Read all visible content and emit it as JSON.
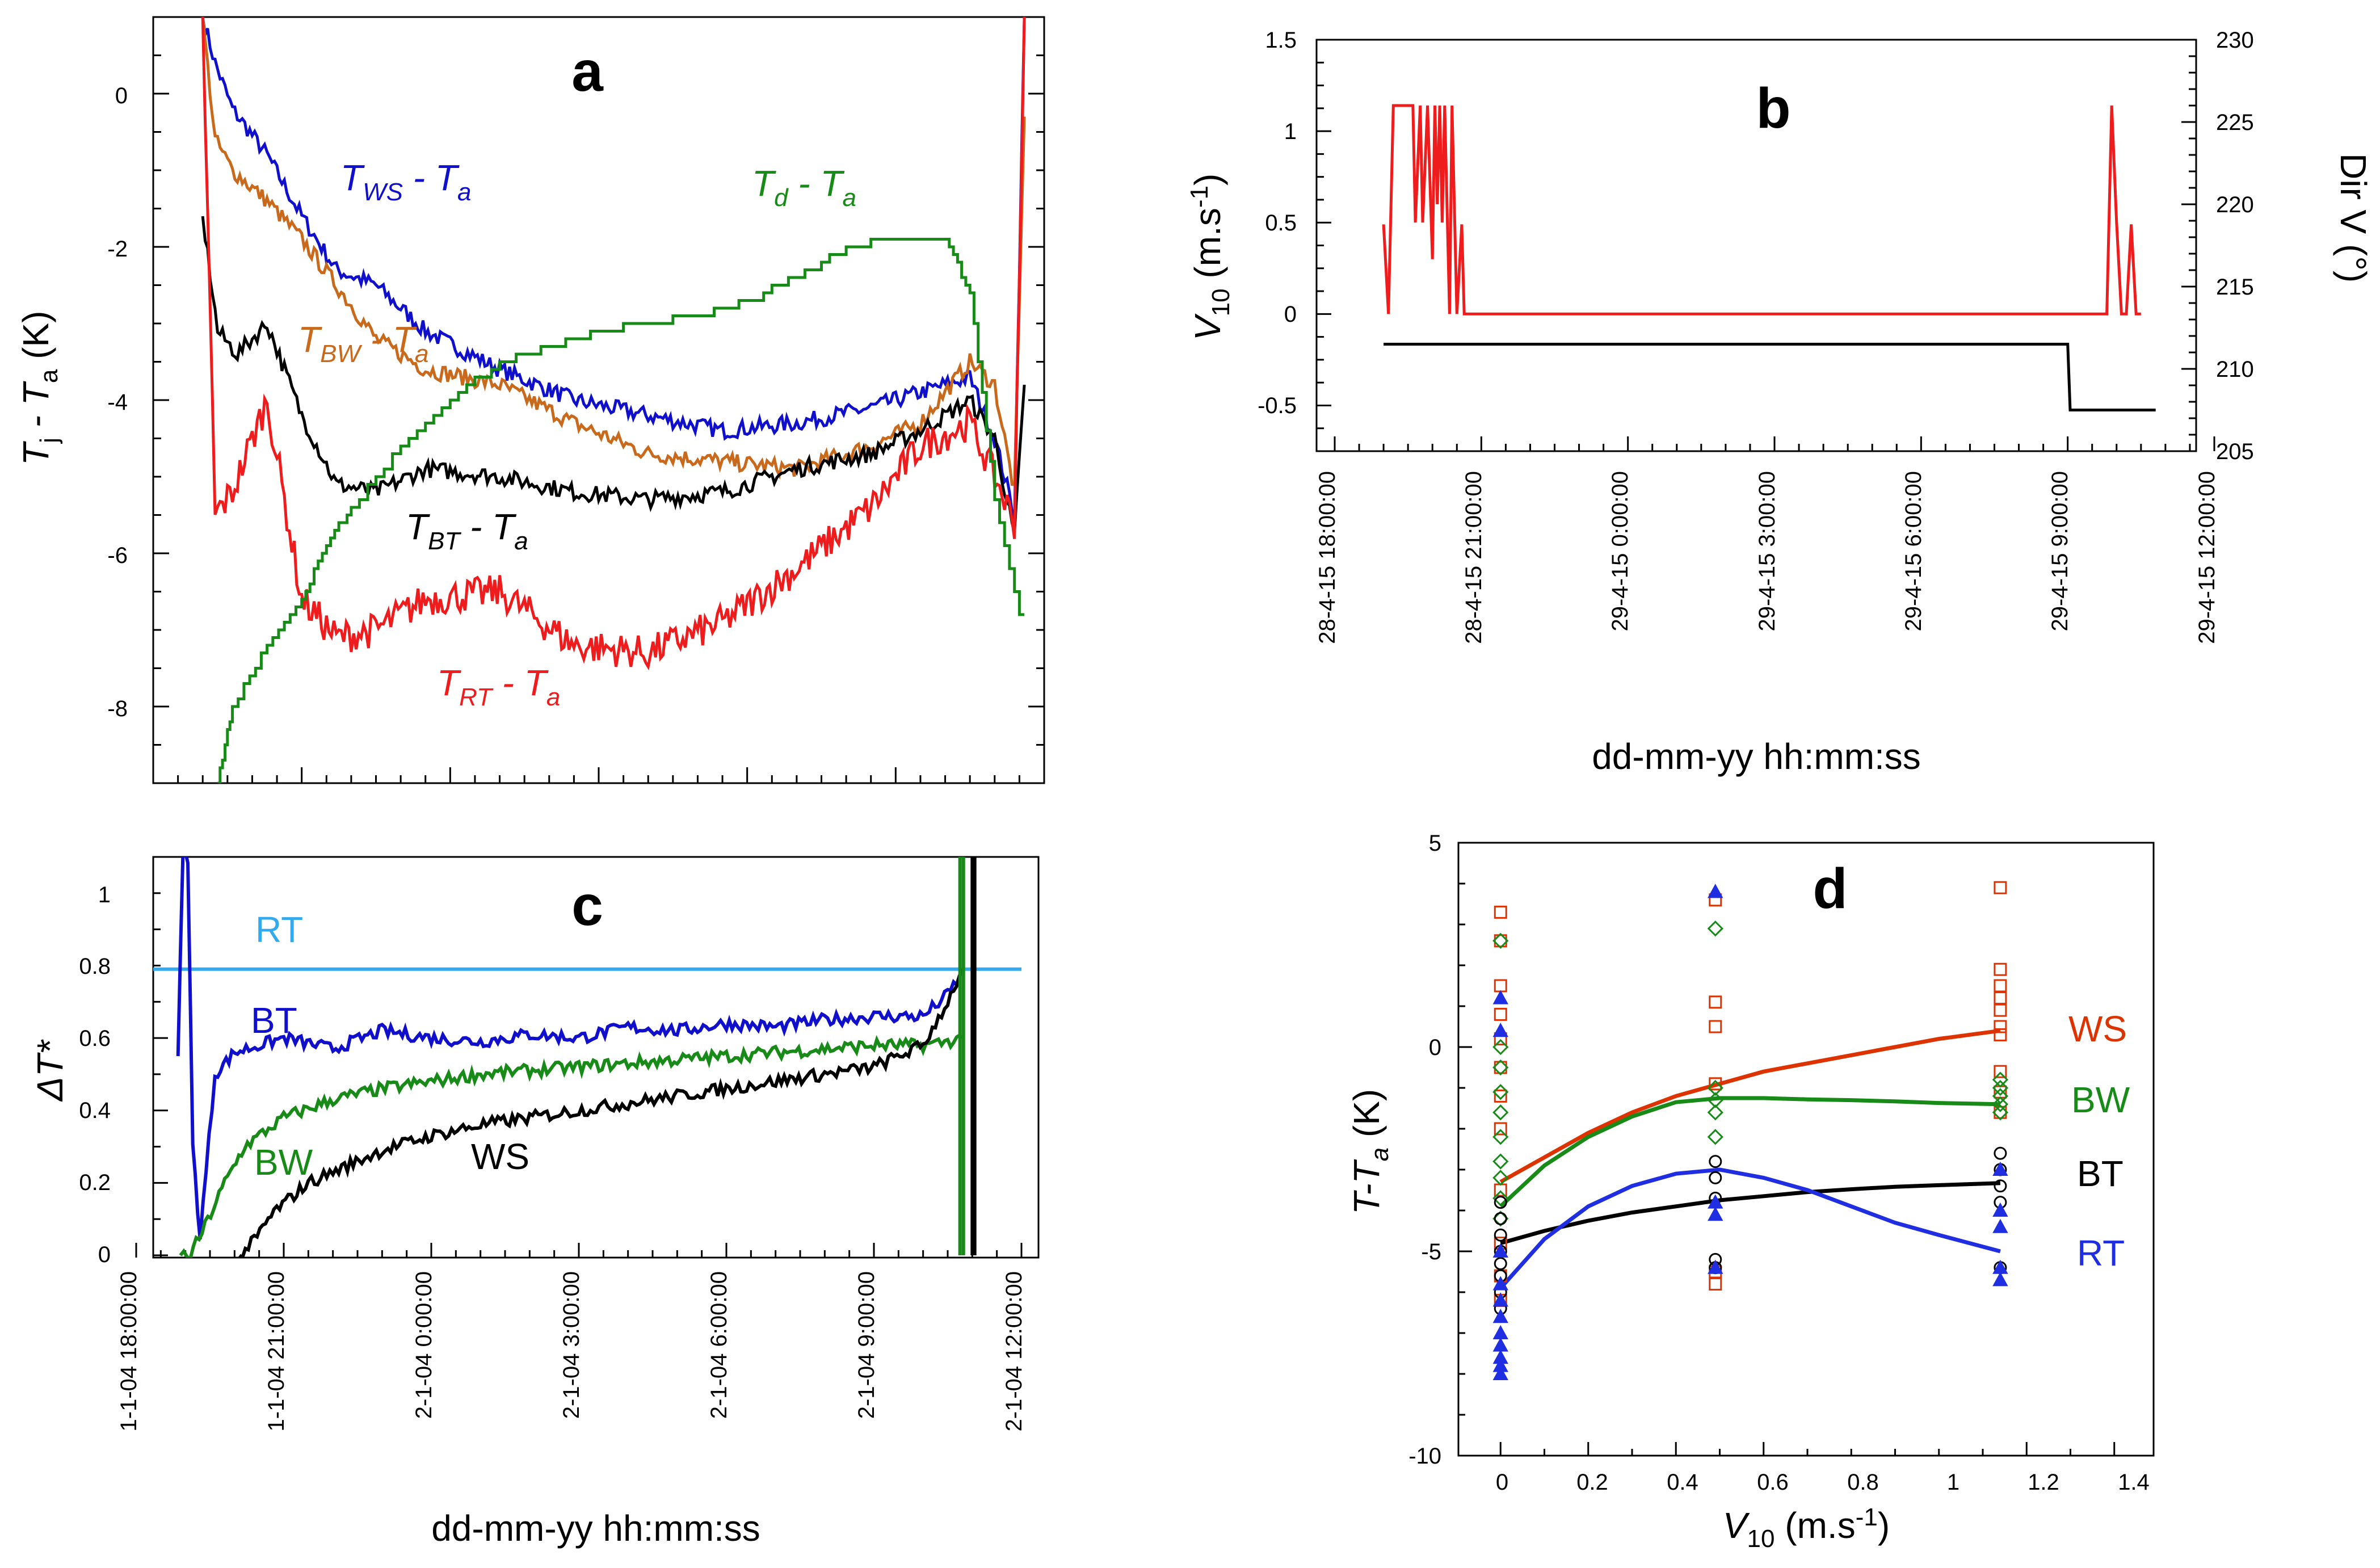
{
  "colors": {
    "ws": "#1010cc",
    "bw": "#c8691c",
    "bt": "#000000",
    "rt": "#ee1c1c",
    "td": "#178a17",
    "rt_c": "#33aaee",
    "red_d": "#dd3300",
    "blue_d": "#1f2ee0",
    "green_d": "#178a17"
  },
  "panel_a": {
    "letter": "a",
    "ylabel_main": "T",
    "ylabel_sub1": "j",
    "ylabel_mid": " - T",
    "ylabel_sub2": "a",
    "ylabel_unit": " (K)",
    "yticks": [
      "0",
      "-2",
      "-4",
      "-6",
      "-8"
    ],
    "labels": {
      "ws": {
        "a": "T",
        "b": "WS",
        "c": " - T",
        "d": "a"
      },
      "td": {
        "a": "T",
        "b": "d",
        "c": " - T",
        "d": "a"
      },
      "bw": {
        "a": "T",
        "b": "BW",
        "c": " - T",
        "d": "a"
      },
      "bt": {
        "a": "T",
        "b": "BT",
        "c": " - T",
        "d": "a"
      },
      "rt": {
        "a": "T",
        "b": "RT",
        "c": " - T",
        "d": "a"
      }
    }
  },
  "panel_b": {
    "letter": "b",
    "ylabel_main": "V",
    "ylabel_sub": "10",
    "ylabel_unit": " (m.s",
    "ylabel_sup": "-1",
    "ylabel_close": ")",
    "y2label": "Dir V (°)",
    "yticks": [
      "1.5",
      "1",
      "0.5",
      "0",
      "-0.5"
    ],
    "y2ticks": [
      "230",
      "225",
      "220",
      "215",
      "210",
      "205"
    ],
    "xticks": [
      "28-4-15 18:00:00",
      "28-4-15 21:00:00",
      "29-4-15 0:00:00",
      "29-4-15 3:00:00",
      "29-4-15 6:00:00",
      "29-4-15 9:00:00",
      "29-4-15 12:00:00"
    ],
    "xlabel": "dd-mm-yy hh:mm:ss"
  },
  "panel_c": {
    "letter": "c",
    "ylabel": "ΔT*",
    "yticks": [
      "1",
      "0.8",
      "0.6",
      "0.4",
      "0.2",
      "0"
    ],
    "xticks": [
      "1-1-04 18:00:00",
      "1-1-04 21:00:00",
      "2-1-04 0:00:00",
      "2-1-04 3:00:00",
      "2-1-04 6:00:00",
      "2-1-04 9:00:00",
      "2-1-04 12:00:00"
    ],
    "xlabel": "dd-mm-yy hh:mm:ss",
    "labels": {
      "rt": "RT",
      "bt": "BT",
      "bw": "BW",
      "ws": "WS"
    }
  },
  "panel_d": {
    "letter": "d",
    "ylabel_main": "T-T",
    "ylabel_sub": "a",
    "ylabel_unit": " (K)",
    "xlabel_main": "V",
    "xlabel_sub": "10",
    "xlabel_unit": " (m.s",
    "xlabel_sup": "-1",
    "xlabel_close": ")",
    "yticks": [
      "5",
      "0",
      "-5",
      "-10"
    ],
    "xticks": [
      "0",
      "0.2",
      "0.4",
      "0.6",
      "0.8",
      "1",
      "1.2",
      "1.4"
    ],
    "legend": {
      "ws": "WS",
      "bw": "BW",
      "bt": "BT",
      "rt": "RT"
    }
  },
  "chart_data": [
    {
      "panel": "a",
      "type": "line",
      "title": "a",
      "xlabel": "",
      "ylabel": "Tj - Ta (K)",
      "x_unit": "hours since 18:00",
      "xlim": [
        0,
        18
      ],
      "ylim": [
        -9,
        1
      ],
      "series": [
        {
          "name": "TWS - Ta",
          "x": [
            1.0,
            1.25,
            1.6,
            2.3,
            3.0,
            3.7,
            4.5,
            5.5,
            7.0,
            8.5,
            10.0,
            11.5,
            13.0,
            14.5,
            15.5,
            16.5,
            17.0,
            17.4,
            17.6
          ],
          "y": [
            1.0,
            0.4,
            -0.2,
            -0.8,
            -1.6,
            -2.3,
            -2.5,
            -3.1,
            -3.6,
            -4.0,
            -4.2,
            -4.4,
            -4.3,
            -4.1,
            -3.9,
            -3.7,
            -4.5,
            -5.5,
            1.0
          ]
        },
        {
          "name": "TBW - Ta",
          "x": [
            1.0,
            1.25,
            1.6,
            2.3,
            3.0,
            3.7,
            4.5,
            5.5,
            7.0,
            8.5,
            10.0,
            11.5,
            13.0,
            14.5,
            15.5,
            16.5,
            17.0,
            17.4,
            17.6
          ],
          "y": [
            1.0,
            -0.6,
            -1.0,
            -1.4,
            -1.9,
            -2.5,
            -3.2,
            -3.6,
            -3.8,
            -4.3,
            -4.7,
            -4.8,
            -4.9,
            -4.6,
            -4.3,
            -3.5,
            -3.8,
            -5.2,
            -0.3
          ]
        },
        {
          "name": "TBT - Ta",
          "x": [
            1.0,
            1.3,
            1.7,
            2.3,
            3.0,
            3.7,
            4.5,
            5.5,
            7.0,
            8.5,
            10.0,
            11.5,
            13.0,
            14.5,
            15.5,
            16.5,
            17.0,
            17.4,
            17.6
          ],
          "y": [
            -1.6,
            -3.1,
            -3.4,
            -3.0,
            -4.2,
            -5.1,
            -5.2,
            -4.9,
            -5.0,
            -5.2,
            -5.3,
            -5.2,
            -4.9,
            -4.7,
            -4.4,
            -4.0,
            -4.5,
            -5.8,
            -3.8
          ]
        },
        {
          "name": "TRT - Ta",
          "x": [
            1.0,
            1.25,
            1.6,
            2.3,
            3.0,
            3.7,
            4.5,
            5.5,
            7.0,
            8.5,
            10.0,
            11.5,
            13.0,
            14.5,
            15.5,
            16.5,
            17.0,
            17.4,
            17.6
          ],
          "y": [
            1.0,
            -5.5,
            -5.2,
            -4.0,
            -6.6,
            -7.1,
            -7.0,
            -6.6,
            -6.5,
            -7.2,
            -7.3,
            -6.9,
            -6.2,
            -5.4,
            -4.6,
            -4.3,
            -5.0,
            -5.6,
            1.0
          ]
        },
        {
          "name": "Td - Ta",
          "x": [
            1.3,
            1.6,
            2.3,
            3.0,
            3.5,
            4.0,
            5.0,
            6.0,
            7.0,
            8.0,
            9.0,
            10.0,
            11.0,
            12.0,
            13.0,
            14.0,
            15.0,
            16.0,
            16.5,
            17.0,
            17.6
          ],
          "y": [
            -9.0,
            -8.0,
            -7.2,
            -6.6,
            -5.9,
            -5.4,
            -4.6,
            -4.0,
            -3.5,
            -3.3,
            -3.1,
            -3.0,
            -2.9,
            -2.7,
            -2.4,
            -2.0,
            -1.9,
            -1.9,
            -2.6,
            -5.3,
            -7.1
          ]
        }
      ]
    },
    {
      "panel": "b",
      "type": "line",
      "title": "b",
      "xlabel": "dd-mm-yy hh:mm:ss",
      "ylabel": "V10 (m.s-1)",
      "y2label": "Dir V (°)",
      "x_unit": "hours since 28-4-15 18:00:00",
      "xlim": [
        0,
        18
      ],
      "ylim": [
        -0.75,
        1.5
      ],
      "y2lim": [
        205,
        230
      ],
      "series": [
        {
          "name": "V10",
          "axis": "left",
          "x": [
            1.0,
            1.1,
            1.2,
            1.6,
            1.65,
            1.75,
            1.8,
            1.9,
            2.0,
            2.05,
            2.1,
            2.15,
            2.2,
            2.25,
            2.35,
            2.4,
            2.5,
            2.6,
            2.65,
            15.8,
            15.9,
            16.0,
            16.1,
            16.2,
            16.3,
            16.4,
            16.5
          ],
          "y": [
            0.49,
            0.0,
            1.14,
            1.14,
            0.5,
            1.14,
            0.5,
            1.14,
            0.3,
            1.14,
            0.6,
            1.14,
            0.5,
            1.14,
            0.0,
            1.14,
            0.0,
            0.49,
            0.0,
            0.0,
            1.14,
            0.5,
            0.0,
            0.0,
            0.49,
            0.0,
            0.0
          ]
        },
        {
          "name": "Dir V",
          "axis": "right",
          "x": [
            1.0,
            15.0,
            15.05,
            16.8
          ],
          "y": [
            211.5,
            211.5,
            207.5,
            207.5
          ]
        }
      ]
    },
    {
      "panel": "c",
      "type": "line",
      "title": "c",
      "xlabel": "dd-mm-yy hh:mm:ss",
      "ylabel": "ΔT*",
      "x_unit": "hours since 1-1-04 18:00:00",
      "xlim": [
        0,
        18
      ],
      "ylim": [
        0,
        1.1
      ],
      "series": [
        {
          "name": "RT",
          "x": [
            0.0,
            18.0
          ],
          "y": [
            0.79,
            0.79
          ]
        },
        {
          "name": "BT",
          "x": [
            0.85,
            0.95,
            1.05,
            1.15,
            1.3,
            1.6,
            2.0,
            3.0,
            4.0,
            5.0,
            6.0,
            7.0,
            8.0,
            9.0,
            10.0,
            11.0,
            12.0,
            13.0,
            14.0,
            15.0,
            16.0,
            16.5,
            16.8
          ],
          "y": [
            0.55,
            1.1,
            1.1,
            0.3,
            0.05,
            0.5,
            0.56,
            0.6,
            0.57,
            0.62,
            0.6,
            0.59,
            0.61,
            0.6,
            0.63,
            0.62,
            0.64,
            0.63,
            0.65,
            0.66,
            0.66,
            0.72,
            0.78
          ]
        },
        {
          "name": "BW",
          "x": [
            0.9,
            1.1,
            1.4,
            1.8,
            2.2,
            3.0,
            4.0,
            5.0,
            6.0,
            7.0,
            8.0,
            9.0,
            10.0,
            11.0,
            12.0,
            13.0,
            14.0,
            15.0,
            16.0,
            16.5,
            16.8
          ],
          "y": [
            0.0,
            0.0,
            0.08,
            0.2,
            0.3,
            0.38,
            0.43,
            0.46,
            0.48,
            0.5,
            0.51,
            0.52,
            0.53,
            0.54,
            0.55,
            0.56,
            0.57,
            0.58,
            0.58,
            0.59,
            0.6
          ]
        },
        {
          "name": "WS",
          "x": [
            2.1,
            2.4,
            2.8,
            3.5,
            4.0,
            5.0,
            6.0,
            7.0,
            8.0,
            9.0,
            10.0,
            11.0,
            12.0,
            13.0,
            14.0,
            15.0,
            16.0,
            16.5,
            16.8
          ],
          "y": [
            0.0,
            0.04,
            0.12,
            0.2,
            0.23,
            0.29,
            0.33,
            0.36,
            0.38,
            0.4,
            0.42,
            0.44,
            0.46,
            0.48,
            0.5,
            0.52,
            0.58,
            0.7,
            0.79
          ]
        }
      ]
    },
    {
      "panel": "d",
      "type": "scatter",
      "title": "d",
      "xlabel": "V10 (m.s-1)",
      "ylabel": "T-Ta (K)",
      "xlim": [
        -0.1,
        1.5
      ],
      "ylim": [
        -10,
        5
      ],
      "series": [
        {
          "name": "WS",
          "marker": "square",
          "x": [
            0,
            0,
            0,
            0,
            0,
            0,
            0,
            0,
            0,
            0,
            0,
            0,
            0.49,
            0.49,
            0.49,
            0.49,
            0.49,
            0.49,
            1.14,
            1.14,
            1.14,
            1.14,
            1.14,
            1.14,
            1.14,
            1.14,
            1.14,
            1.14
          ],
          "y": [
            3.3,
            2.6,
            1.5,
            0.8,
            0.2,
            -0.5,
            -1.2,
            -2.0,
            -3.5,
            -4.8,
            -5.6,
            -6.2,
            3.6,
            1.1,
            0.5,
            -0.9,
            -5.5,
            -5.8,
            3.9,
            1.9,
            1.5,
            1.2,
            0.9,
            0.5,
            0.3,
            -0.6,
            -1.1,
            -1.6
          ]
        },
        {
          "name": "BW",
          "marker": "diamond",
          "x": [
            0,
            0,
            0,
            0,
            0,
            0,
            0,
            0,
            0,
            0,
            0.49,
            0.49,
            0.49,
            0.49,
            0.49,
            1.14,
            1.14,
            1.14,
            1.14,
            1.14
          ],
          "y": [
            2.6,
            0.0,
            -0.5,
            -1.1,
            -1.6,
            -2.2,
            -2.8,
            -3.2,
            -3.7,
            -4.2,
            2.9,
            -1.0,
            -1.3,
            -1.6,
            -2.2,
            -0.8,
            -1.0,
            -1.2,
            -1.4,
            -1.6
          ]
        },
        {
          "name": "BT",
          "marker": "circle",
          "x": [
            0,
            0,
            0,
            0,
            0,
            0,
            0,
            0,
            0.49,
            0.49,
            0.49,
            0.49,
            0.49,
            1.14,
            1.14,
            1.14,
            1.14,
            1.14
          ],
          "y": [
            -3.8,
            -4.2,
            -4.6,
            -5.0,
            -5.3,
            -5.6,
            -6.0,
            -6.4,
            -2.8,
            -3.2,
            -3.7,
            -5.2,
            -5.4,
            -2.6,
            -3.0,
            -3.4,
            -3.8,
            -5.4
          ]
        },
        {
          "name": "RT",
          "marker": "triangle",
          "x": [
            0,
            0,
            0,
            0,
            0,
            0,
            0,
            0,
            0,
            0,
            0,
            0.49,
            0.49,
            0.49,
            0.49,
            1.14,
            1.14,
            1.14,
            1.14,
            1.14
          ],
          "y": [
            1.2,
            0.4,
            -5.0,
            -5.8,
            -6.2,
            -6.6,
            -7.0,
            -7.3,
            -7.6,
            -7.8,
            -8.0,
            3.8,
            -3.8,
            -4.1,
            -5.4,
            -3.0,
            -4.0,
            -4.4,
            -5.4,
            -5.7
          ]
        }
      ],
      "fits": [
        {
          "name": "WS fit",
          "x": [
            0,
            0.1,
            0.2,
            0.3,
            0.4,
            0.5,
            0.6,
            0.7,
            0.8,
            0.9,
            1.0,
            1.14
          ],
          "y": [
            -3.3,
            -2.7,
            -2.1,
            -1.6,
            -1.2,
            -0.9,
            -0.6,
            -0.4,
            -0.2,
            0.0,
            0.2,
            0.4
          ]
        },
        {
          "name": "BW fit",
          "x": [
            0,
            0.1,
            0.2,
            0.3,
            0.4,
            0.5,
            0.6,
            0.7,
            0.8,
            0.9,
            1.0,
            1.14
          ],
          "y": [
            -3.9,
            -2.9,
            -2.2,
            -1.7,
            -1.35,
            -1.25,
            -1.25,
            -1.28,
            -1.3,
            -1.33,
            -1.37,
            -1.4
          ]
        },
        {
          "name": "BT fit",
          "x": [
            0,
            0.1,
            0.2,
            0.3,
            0.4,
            0.5,
            0.6,
            0.7,
            0.8,
            0.9,
            1.0,
            1.14
          ],
          "y": [
            -4.8,
            -4.5,
            -4.25,
            -4.05,
            -3.9,
            -3.75,
            -3.65,
            -3.55,
            -3.48,
            -3.42,
            -3.38,
            -3.33
          ]
        },
        {
          "name": "RT fit",
          "x": [
            0,
            0.1,
            0.2,
            0.3,
            0.4,
            0.5,
            0.6,
            0.7,
            0.8,
            0.9,
            1.0,
            1.14
          ],
          "y": [
            -5.9,
            -4.7,
            -3.9,
            -3.4,
            -3.1,
            -3.0,
            -3.2,
            -3.5,
            -3.9,
            -4.3,
            -4.6,
            -5.0
          ]
        }
      ]
    }
  ]
}
